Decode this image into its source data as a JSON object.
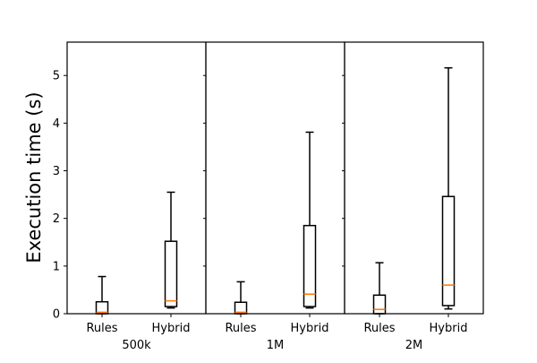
{
  "chart_data": {
    "type": "boxplot",
    "ylabel": "Execution time (s)",
    "ylim": [
      0,
      5.7
    ],
    "yticks": [
      0,
      1,
      2,
      3,
      4,
      5
    ],
    "median_color": "#ff7f0e",
    "box_color": "#000000",
    "panels": [
      {
        "label": "500k",
        "categories": [
          "Rules",
          "Hybrid"
        ],
        "boxes": [
          {
            "min": 0.0,
            "q1": 0.0,
            "median": 0.03,
            "q3": 0.25,
            "max": 0.78
          },
          {
            "min": 0.12,
            "q1": 0.15,
            "median": 0.27,
            "q3": 1.52,
            "max": 2.55
          }
        ]
      },
      {
        "label": "1M",
        "categories": [
          "Rules",
          "Hybrid"
        ],
        "boxes": [
          {
            "min": 0.0,
            "q1": 0.0,
            "median": 0.03,
            "q3": 0.24,
            "max": 0.67
          },
          {
            "min": 0.12,
            "q1": 0.15,
            "median": 0.41,
            "q3": 1.85,
            "max": 3.81
          }
        ]
      },
      {
        "label": "2M",
        "categories": [
          "Rules",
          "Hybrid"
        ],
        "boxes": [
          {
            "min": 0.0,
            "q1": 0.0,
            "median": 0.09,
            "q3": 0.39,
            "max": 1.07
          },
          {
            "min": 0.1,
            "q1": 0.17,
            "median": 0.6,
            "q3": 2.46,
            "max": 5.16
          }
        ]
      }
    ]
  }
}
